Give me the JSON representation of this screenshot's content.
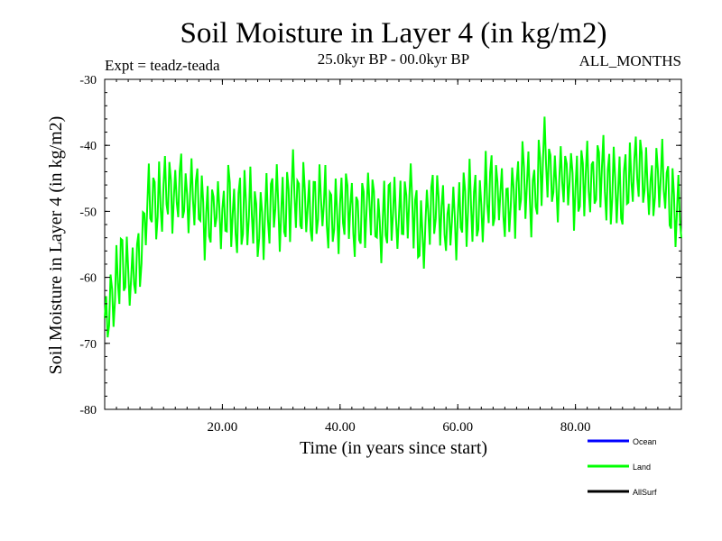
{
  "chart_data": {
    "type": "line",
    "title": "Soil Moisture in Layer 4 (in kg/m2)",
    "subtitle_left": "Expt = teadz-teada",
    "subtitle_center": "25.0kyr BP - 00.0kyr BP",
    "subtitle_right": "ALL_MONTHS",
    "xlabel": "Time (in years since start)",
    "ylabel": "Soil Moisture in Layer 4 (in kg/m2)",
    "xlim": [
      0,
      98
    ],
    "ylim": [
      -80,
      -30
    ],
    "x_ticks": [
      {
        "value": 20,
        "label": "20.00"
      },
      {
        "value": 40,
        "label": "40.00"
      },
      {
        "value": 60,
        "label": "60.00"
      },
      {
        "value": 80,
        "label": "80.00"
      }
    ],
    "y_ticks": [
      {
        "value": -30,
        "label": "-30"
      },
      {
        "value": -40,
        "label": "-40"
      },
      {
        "value": -50,
        "label": "-50"
      },
      {
        "value": -60,
        "label": "-60"
      },
      {
        "value": -70,
        "label": "-70"
      },
      {
        "value": -80,
        "label": "-80"
      }
    ],
    "legend": [
      {
        "name": "Ocean",
        "label": "Ocean",
        "color": "#0000ff"
      },
      {
        "name": "Land",
        "label": "Land",
        "color": "#00ff00"
      },
      {
        "name": "AllSurf",
        "label": "AllSurf",
        "color": "#000000"
      }
    ],
    "series": [
      {
        "name": "Land",
        "color": "#00ff00",
        "x": [
          0,
          1,
          2,
          3,
          4,
          5,
          6,
          7,
          8,
          9,
          10,
          11,
          12,
          13,
          14,
          15,
          16,
          17,
          18,
          19,
          20,
          21,
          22,
          23,
          24,
          25,
          26,
          27,
          28,
          29,
          30,
          31,
          32,
          33,
          34,
          35,
          36,
          37,
          38,
          39,
          40,
          41,
          42,
          43,
          44,
          45,
          46,
          47,
          48,
          49,
          50,
          51,
          52,
          53,
          54,
          55,
          56,
          57,
          58,
          59,
          60,
          61,
          62,
          63,
          64,
          65,
          66,
          67,
          68,
          69,
          70,
          71,
          72,
          73,
          74,
          75,
          76,
          77,
          78,
          79,
          80,
          81,
          82,
          83,
          84,
          85,
          86,
          87,
          88,
          89,
          90,
          91,
          92,
          93,
          94,
          95,
          96,
          97,
          98
        ],
        "values": [
          -68,
          -64,
          -61,
          -58,
          -59,
          -60,
          -57,
          -51,
          -48,
          -50,
          -46,
          -47,
          -49,
          -45,
          -50,
          -48,
          -47,
          -52,
          -50,
          -49,
          -51,
          -48,
          -52,
          -50,
          -50,
          -49,
          -53,
          -51,
          -50,
          -48,
          -52,
          -49,
          -47,
          -50,
          -48,
          -51,
          -49,
          -47,
          -52,
          -50,
          -51,
          -48,
          -50,
          -52,
          -50,
          -48,
          -51,
          -53,
          -50,
          -49,
          -52,
          -50,
          -48,
          -51,
          -54,
          -50,
          -49,
          -51,
          -53,
          -50,
          -52,
          -49,
          -48,
          -51,
          -50,
          -46,
          -48,
          -47,
          -50,
          -49,
          -47,
          -45,
          -46,
          -48,
          -44,
          -41,
          -45,
          -46,
          -44,
          -45,
          -47,
          -45,
          -44,
          -46,
          -43,
          -45,
          -47,
          -46,
          -48,
          -45,
          -44,
          -43,
          -46,
          -47,
          -45,
          -46,
          -47,
          -50,
          -49
        ]
      }
    ]
  }
}
